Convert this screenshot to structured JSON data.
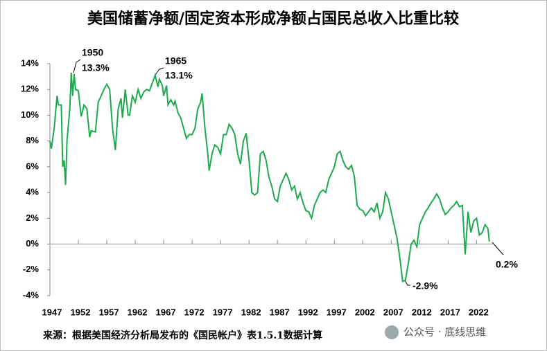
{
  "chart_data": {
    "type": "line",
    "title": "美国储蓄净额/固定资本形成净额占国民总收入比重比较",
    "source": "来源：根据美国经济分析局发布的《国民帐户》表1.5.1数据计算",
    "watermark": "公众号 · 底线思维",
    "color": "#1aab4b",
    "xlim": [
      1947,
      2025
    ],
    "xticks": [
      1947,
      1952,
      1957,
      1962,
      1967,
      1972,
      1977,
      1982,
      1987,
      1992,
      1997,
      2002,
      2007,
      2012,
      2017,
      2022
    ],
    "ylim": [
      -4,
      14
    ],
    "yticks": [
      {
        "value": -4,
        "label": "-4%"
      },
      {
        "value": -2,
        "label": "-2%"
      },
      {
        "value": 0,
        "label": "0%"
      },
      {
        "value": 2,
        "label": "2%"
      },
      {
        "value": 4,
        "label": "4%"
      },
      {
        "value": 6,
        "label": "6%"
      },
      {
        "value": 8,
        "label": "8%"
      },
      {
        "value": 10,
        "label": "10%"
      },
      {
        "value": 12,
        "label": "12%"
      },
      {
        "value": 14,
        "label": "14%"
      }
    ],
    "annotations": [
      "1950",
      "13.3%",
      "1965",
      "13.1%",
      "-2.9%",
      "0.2%"
    ],
    "x": [
      1947.0,
      1947.25,
      1947.75,
      1948.25,
      1948.5,
      1949.0,
      1949.25,
      1949.5,
      1949.75,
      1950.0,
      1950.5,
      1950.75,
      1951.0,
      1951.25,
      1951.5,
      1952.0,
      1952.5,
      1953.0,
      1953.5,
      1954.0,
      1954.25,
      1955.0,
      1955.5,
      1956.0,
      1956.5,
      1957.0,
      1957.5,
      1958.0,
      1958.5,
      1959.0,
      1959.5,
      1959.75,
      1960.25,
      1960.75,
      1961.0,
      1961.5,
      1962.0,
      1962.5,
      1963.0,
      1963.5,
      1964.0,
      1964.5,
      1965.0,
      1965.5,
      1966.0,
      1966.25,
      1966.75,
      1967.0,
      1967.5,
      1967.75,
      1968.25,
      1968.75,
      1969.0,
      1969.5,
      1970.0,
      1970.5,
      1971.0,
      1971.5,
      1972.0,
      1972.5,
      1973.0,
      1973.5,
      1973.75,
      1974.25,
      1974.75,
      1975.0,
      1975.5,
      1976.0,
      1976.5,
      1977.0,
      1977.5,
      1978.0,
      1978.5,
      1979.0,
      1979.5,
      1980.0,
      1980.5,
      1981.0,
      1981.5,
      1982.0,
      1982.5,
      1983.0,
      1983.5,
      1984.0,
      1984.5,
      1985.0,
      1985.5,
      1986.0,
      1986.5,
      1987.0,
      1987.5,
      1988.0,
      1988.5,
      1989.0,
      1989.5,
      1990.0,
      1990.5,
      1991.0,
      1991.5,
      1992.0,
      1992.5,
      1993.0,
      1993.5,
      1994.0,
      1994.5,
      1995.0,
      1995.5,
      1996.0,
      1996.5,
      1997.0,
      1997.5,
      1998.0,
      1998.5,
      1999.0,
      1999.5,
      2000.0,
      2000.5,
      2001.0,
      2001.5,
      2002.0,
      2002.5,
      2003.0,
      2003.5,
      2004.0,
      2004.5,
      2005.0,
      2005.5,
      2006.0,
      2006.5,
      2007.0,
      2007.5,
      2008.0,
      2008.5,
      2009.0,
      2009.5,
      2010.0,
      2010.5,
      2011.0,
      2011.5,
      2012.0,
      2012.5,
      2013.0,
      2013.5,
      2014.0,
      2014.5,
      2015.0,
      2015.5,
      2016.0,
      2016.5,
      2017.0,
      2017.5,
      2018.0,
      2018.5,
      2019.0,
      2019.5,
      2020.0,
      2020.5,
      2021.0,
      2021.5,
      2022.0,
      2022.5,
      2023.0,
      2023.5,
      2024.0,
      2024.25
    ],
    "values": [
      8.0,
      7.4,
      9.0,
      11.5,
      10.8,
      10.8,
      6.0,
      6.5,
      4.6,
      8.0,
      10.5,
      13.3,
      11.5,
      13.2,
      12.0,
      11.9,
      9.9,
      10.8,
      10.5,
      8.3,
      8.8,
      8.7,
      11.0,
      11.5,
      12.0,
      12.4,
      12.0,
      9.0,
      7.3,
      10.5,
      11.3,
      9.8,
      12.0,
      10.0,
      10.0,
      11.5,
      11.0,
      12.0,
      11.3,
      11.8,
      12.0,
      11.9,
      12.5,
      13.1,
      12.2,
      12.8,
      12.3,
      11.5,
      12.3,
      10.8,
      11.2,
      10.8,
      11.1,
      10.2,
      9.8,
      9.0,
      8.2,
      8.5,
      8.5,
      9.0,
      10.5,
      11.0,
      11.7,
      9.0,
      7.0,
      5.7,
      7.0,
      7.7,
      7.5,
      7.0,
      8.5,
      8.5,
      9.3,
      9.0,
      8.5,
      7.0,
      6.2,
      8.0,
      8.6,
      6.5,
      4.0,
      3.8,
      4.0,
      7.0,
      7.2,
      6.5,
      5.2,
      4.5,
      3.5,
      3.3,
      4.5,
      5.0,
      5.5,
      5.0,
      4.2,
      4.5,
      3.5,
      4.0,
      3.2,
      2.6,
      2.5,
      2.0,
      3.0,
      3.5,
      4.0,
      4.2,
      4.0,
      5.0,
      5.5,
      6.0,
      7.0,
      7.2,
      6.5,
      6.0,
      5.8,
      6.1,
      5.3,
      3.0,
      2.7,
      2.6,
      2.2,
      2.5,
      2.8,
      2.5,
      3.2,
      2.0,
      2.5,
      4.0,
      3.5,
      2.5,
      1.5,
      0.5,
      -1.0,
      -2.9,
      -2.8,
      -1.5,
      0.0,
      0.3,
      -0.2,
      1.5,
      2.0,
      2.5,
      2.8,
      3.2,
      3.5,
      3.9,
      3.5,
      2.8,
      2.3,
      2.5,
      2.8,
      3.0,
      3.3,
      2.9,
      3.0,
      -0.8,
      2.5,
      0.9,
      1.8,
      2.0,
      0.7,
      0.9,
      1.5,
      1.2,
      0.2
    ]
  }
}
